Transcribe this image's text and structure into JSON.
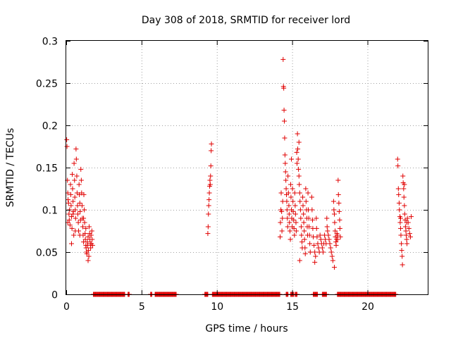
{
  "chart_data": {
    "type": "scatter",
    "title": "Day 308 of 2018, SRMTID for receiver lord",
    "xlabel": "GPS time / hours",
    "ylabel": "SRMTID / TECUs",
    "xlim": [
      0,
      24
    ],
    "ylim": [
      0,
      0.3
    ],
    "grid": true,
    "marker": "+",
    "colors": {
      "series": "#e00000",
      "axes": "#000000",
      "grid": "#a0a0a0"
    },
    "x_ticks": [
      {
        "value": 0,
        "label": "0"
      },
      {
        "value": 5,
        "label": "5"
      },
      {
        "value": 10,
        "label": "10"
      },
      {
        "value": 15,
        "label": "15"
      },
      {
        "value": 20,
        "label": "20"
      }
    ],
    "y_ticks": [
      {
        "value": 0,
        "label": "0"
      },
      {
        "value": 0.05,
        "label": "0.05"
      },
      {
        "value": 0.1,
        "label": "0.1"
      },
      {
        "value": 0.15,
        "label": "0.15"
      },
      {
        "value": 0.2,
        "label": "0.2"
      },
      {
        "value": 0.25,
        "label": "0.25"
      },
      {
        "value": 0.3,
        "label": "0.3"
      }
    ],
    "series": [
      {
        "name": "SRMTID",
        "points": [
          [
            0.03,
            0.183
          ],
          [
            0.05,
            0.175
          ],
          [
            0.08,
            0.135
          ],
          [
            0.1,
            0.12
          ],
          [
            0.12,
            0.112
          ],
          [
            0.15,
            0.108
          ],
          [
            0.18,
            0.095
          ],
          [
            0.2,
            0.088
          ],
          [
            0.22,
            0.1
          ],
          [
            0.25,
            0.082
          ],
          [
            0.28,
            0.13
          ],
          [
            0.3,
            0.118
          ],
          [
            0.32,
            0.105
          ],
          [
            0.35,
            0.092
          ],
          [
            0.38,
            0.078
          ],
          [
            0.4,
            0.142
          ],
          [
            0.42,
            0.125
          ],
          [
            0.45,
            0.11
          ],
          [
            0.47,
            0.098
          ],
          [
            0.5,
            0.07
          ],
          [
            0.52,
            0.155
          ],
          [
            0.55,
            0.135
          ],
          [
            0.57,
            0.115
          ],
          [
            0.6,
            0.1
          ],
          [
            0.62,
            0.09
          ],
          [
            0.65,
            0.172
          ],
          [
            0.67,
            0.16
          ],
          [
            0.7,
            0.14
          ],
          [
            0.72,
            0.12
          ],
          [
            0.75,
            0.105
          ],
          [
            0.77,
            0.095
          ],
          [
            0.8,
            0.085
          ],
          [
            0.82,
            0.075
          ],
          [
            0.85,
            0.13
          ],
          [
            0.87,
            0.118
          ],
          [
            0.9,
            0.108
          ],
          [
            0.92,
            0.098
          ],
          [
            0.95,
            0.088
          ],
          [
            0.97,
            0.148
          ],
          [
            1.0,
            0.135
          ],
          [
            1.02,
            0.12
          ],
          [
            1.05,
            0.105
          ],
          [
            1.07,
            0.09
          ],
          [
            1.1,
            0.08
          ],
          [
            1.12,
            0.07
          ],
          [
            1.15,
            0.062
          ],
          [
            1.17,
            0.118
          ],
          [
            1.2,
            0.1
          ],
          [
            1.22,
            0.085
          ],
          [
            1.25,
            0.072
          ],
          [
            1.27,
            0.065
          ],
          [
            1.3,
            0.058
          ],
          [
            1.32,
            0.055
          ],
          [
            1.35,
            0.05
          ],
          [
            1.37,
            0.048
          ],
          [
            1.4,
            0.062
          ],
          [
            1.42,
            0.058
          ],
          [
            1.45,
            0.068
          ],
          [
            1.47,
            0.052
          ],
          [
            1.5,
            0.045
          ],
          [
            1.52,
            0.08
          ],
          [
            1.55,
            0.072
          ],
          [
            1.57,
            0.065
          ],
          [
            1.6,
            0.06
          ],
          [
            1.62,
            0.055
          ],
          [
            1.65,
            0.07
          ],
          [
            1.67,
            0.06
          ],
          [
            1.7,
            0.075
          ],
          [
            1.72,
            0.065
          ],
          [
            1.75,
            0.058
          ],
          [
            0.1,
            0.085
          ],
          [
            0.35,
            0.06
          ],
          [
            0.6,
            0.075
          ],
          [
            0.9,
            0.07
          ],
          [
            1.15,
            0.09
          ],
          [
            1.45,
            0.04
          ],
          [
            0.45,
            0.095
          ],
          [
            1.3,
            0.078
          ],
          [
            9.4,
            0.072
          ],
          [
            9.42,
            0.08
          ],
          [
            9.44,
            0.095
          ],
          [
            9.46,
            0.105
          ],
          [
            9.48,
            0.112
          ],
          [
            9.5,
            0.12
          ],
          [
            9.52,
            0.128
          ],
          [
            9.54,
            0.135
          ],
          [
            9.56,
            0.13
          ],
          [
            9.58,
            0.14
          ],
          [
            9.6,
            0.152
          ],
          [
            9.62,
            0.17
          ],
          [
            9.64,
            0.178
          ],
          [
            14.2,
            0.068
          ],
          [
            14.22,
            0.085
          ],
          [
            14.25,
            0.1
          ],
          [
            14.27,
            0.12
          ],
          [
            14.3,
            0.098
          ],
          [
            14.32,
            0.075
          ],
          [
            14.35,
            0.09
          ],
          [
            14.37,
            0.11
          ],
          [
            14.4,
            0.278
          ],
          [
            14.42,
            0.246
          ],
          [
            14.44,
            0.244
          ],
          [
            14.46,
            0.218
          ],
          [
            14.48,
            0.205
          ],
          [
            14.5,
            0.185
          ],
          [
            14.52,
            0.165
          ],
          [
            14.54,
            0.155
          ],
          [
            14.56,
            0.145
          ],
          [
            14.58,
            0.135
          ],
          [
            14.6,
            0.125
          ],
          [
            14.62,
            0.118
          ],
          [
            14.64,
            0.11
          ],
          [
            14.66,
            0.1
          ],
          [
            14.68,
            0.09
          ],
          [
            14.7,
            0.08
          ],
          [
            14.72,
            0.14
          ],
          [
            14.75,
            0.12
          ],
          [
            14.78,
            0.105
          ],
          [
            14.8,
            0.095
          ],
          [
            14.82,
            0.085
          ],
          [
            14.85,
            0.075
          ],
          [
            14.88,
            0.065
          ],
          [
            14.9,
            0.13
          ],
          [
            14.92,
            0.115
          ],
          [
            14.95,
            0.1
          ],
          [
            14.97,
            0.09
          ],
          [
            15.0,
            0.08
          ],
          [
            15.02,
            0.125
          ],
          [
            15.05,
            0.11
          ],
          [
            15.07,
            0.098
          ],
          [
            15.1,
            0.088
          ],
          [
            15.12,
            0.078
          ],
          [
            15.15,
            0.07
          ],
          [
            15.17,
            0.12
          ],
          [
            15.2,
            0.105
          ],
          [
            15.22,
            0.095
          ],
          [
            15.25,
            0.085
          ],
          [
            15.27,
            0.075
          ],
          [
            15.3,
            0.168
          ],
          [
            15.32,
            0.155
          ],
          [
            15.35,
            0.19
          ],
          [
            15.37,
            0.172
          ],
          [
            15.4,
            0.16
          ],
          [
            15.42,
            0.148
          ],
          [
            15.45,
            0.14
          ],
          [
            15.47,
            0.13
          ],
          [
            15.5,
            0.12
          ],
          [
            15.52,
            0.11
          ],
          [
            15.55,
            0.1
          ],
          [
            15.57,
            0.09
          ],
          [
            15.6,
            0.08
          ],
          [
            15.62,
            0.07
          ],
          [
            15.65,
            0.062
          ],
          [
            15.67,
            0.055
          ],
          [
            15.7,
            0.115
          ],
          [
            15.72,
            0.105
          ],
          [
            15.75,
            0.095
          ],
          [
            15.77,
            0.085
          ],
          [
            15.8,
            0.075
          ],
          [
            15.82,
            0.065
          ],
          [
            15.85,
            0.055
          ],
          [
            15.87,
            0.048
          ],
          [
            15.9,
            0.125
          ],
          [
            15.92,
            0.11
          ],
          [
            15.95,
            0.1
          ],
          [
            15.97,
            0.09
          ],
          [
            16.0,
            0.08
          ],
          [
            16.02,
            0.07
          ],
          [
            16.05,
            0.12
          ],
          [
            16.07,
            0.1
          ],
          [
            16.1,
            0.09
          ],
          [
            16.12,
            0.08
          ],
          [
            16.15,
            0.07
          ],
          [
            16.17,
            0.06
          ],
          [
            16.2,
            0.05
          ],
          [
            16.3,
            0.115
          ],
          [
            16.32,
            0.1
          ],
          [
            16.35,
            0.088
          ],
          [
            16.37,
            0.078
          ],
          [
            16.4,
            0.068
          ],
          [
            16.45,
            0.058
          ],
          [
            16.5,
            0.05
          ],
          [
            16.55,
            0.045
          ],
          [
            16.6,
            0.09
          ],
          [
            16.62,
            0.078
          ],
          [
            16.65,
            0.068
          ],
          [
            16.7,
            0.06
          ],
          [
            16.75,
            0.055
          ],
          [
            16.8,
            0.05
          ],
          [
            16.85,
            0.07
          ],
          [
            16.9,
            0.065
          ],
          [
            16.95,
            0.06
          ],
          [
            17.0,
            0.055
          ],
          [
            17.05,
            0.05
          ],
          [
            17.1,
            0.06
          ],
          [
            17.15,
            0.07
          ],
          [
            17.2,
            0.065
          ],
          [
            17.25,
            0.06
          ],
          [
            17.3,
            0.09
          ],
          [
            17.32,
            0.08
          ],
          [
            17.35,
            0.075
          ],
          [
            17.4,
            0.07
          ],
          [
            17.45,
            0.065
          ],
          [
            17.5,
            0.06
          ],
          [
            17.55,
            0.055
          ],
          [
            17.6,
            0.05
          ],
          [
            17.65,
            0.045
          ],
          [
            17.7,
            0.04
          ],
          [
            17.75,
            0.11
          ],
          [
            17.77,
            0.1
          ],
          [
            17.8,
            0.095
          ],
          [
            17.82,
            0.085
          ],
          [
            17.85,
            0.075
          ],
          [
            17.87,
            0.068
          ],
          [
            17.9,
            0.062
          ],
          [
            17.92,
            0.058
          ],
          [
            17.95,
            0.065
          ],
          [
            17.97,
            0.072
          ],
          [
            18.0,
            0.07
          ],
          [
            18.02,
            0.065
          ],
          [
            18.05,
            0.135
          ],
          [
            18.07,
            0.118
          ],
          [
            18.1,
            0.108
          ],
          [
            18.12,
            0.098
          ],
          [
            18.15,
            0.088
          ],
          [
            18.17,
            0.078
          ],
          [
            18.2,
            0.068
          ],
          [
            17.8,
            0.032
          ],
          [
            15.5,
            0.04
          ],
          [
            16.5,
            0.038
          ],
          [
            14.95,
            0.16
          ],
          [
            15.45,
            0.18
          ],
          [
            22.0,
            0.16
          ],
          [
            22.02,
            0.152
          ],
          [
            22.05,
            0.125
          ],
          [
            22.07,
            0.118
          ],
          [
            22.1,
            0.108
          ],
          [
            22.12,
            0.1
          ],
          [
            22.15,
            0.092
          ],
          [
            22.17,
            0.085
          ],
          [
            22.2,
            0.078
          ],
          [
            22.22,
            0.07
          ],
          [
            22.25,
            0.06
          ],
          [
            22.27,
            0.052
          ],
          [
            22.3,
            0.045
          ],
          [
            22.32,
            0.035
          ],
          [
            22.35,
            0.14
          ],
          [
            22.37,
            0.132
          ],
          [
            22.4,
            0.125
          ],
          [
            22.42,
            0.115
          ],
          [
            22.45,
            0.105
          ],
          [
            22.47,
            0.095
          ],
          [
            22.5,
            0.088
          ],
          [
            22.52,
            0.08
          ],
          [
            22.55,
            0.075
          ],
          [
            22.57,
            0.07
          ],
          [
            22.6,
            0.065
          ],
          [
            22.62,
            0.06
          ],
          [
            22.65,
            0.09
          ],
          [
            22.7,
            0.085
          ],
          [
            22.75,
            0.078
          ],
          [
            22.8,
            0.072
          ],
          [
            22.85,
            0.068
          ],
          [
            22.9,
            0.092
          ],
          [
            22.45,
            0.13
          ],
          [
            22.6,
            0.085
          ],
          [
            22.2,
            0.09
          ]
        ]
      }
    ],
    "zero_bands": [
      [
        1.8,
        3.9
      ],
      [
        4.1,
        4.2
      ],
      [
        5.6,
        5.7
      ],
      [
        5.9,
        7.3
      ],
      [
        9.2,
        9.4
      ],
      [
        9.7,
        14.2
      ],
      [
        14.6,
        14.75
      ],
      [
        14.9,
        15.1
      ],
      [
        15.2,
        15.35
      ],
      [
        16.4,
        16.7
      ],
      [
        17.0,
        17.3
      ],
      [
        18.0,
        21.9
      ]
    ]
  }
}
